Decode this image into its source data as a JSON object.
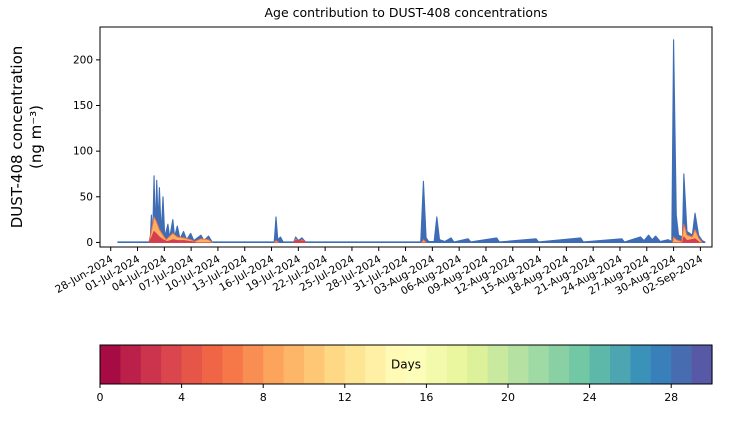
{
  "chart_data": {
    "type": "area",
    "title": "Age contribution to DUST-408 concentrations",
    "xlabel": "",
    "ylabel": "DUST-408 concentration (ng m⁻³)",
    "ylabel_lines": [
      "DUST-408 concentration",
      "(ng m⁻³)"
    ],
    "ylim": [
      -5,
      236
    ],
    "yticks": [
      0,
      50,
      100,
      150,
      200
    ],
    "xlim": [
      -1.2,
      67.3
    ],
    "x_unit": "days since 28-Jun-2024",
    "grid": false,
    "xtick_days": [
      0,
      3,
      6,
      9,
      12,
      15,
      18,
      21,
      24,
      27,
      30,
      33,
      36,
      39,
      42,
      45,
      48,
      51,
      54,
      57,
      60,
      63,
      66
    ],
    "xtick_labels": [
      "28-Jun-2024",
      "01-Jul-2024",
      "04-Jul-2024",
      "07-Jul-2024",
      "10-Jul-2024",
      "13-Jul-2024",
      "16-Jul-2024",
      "19-Jul-2024",
      "22-Jul-2024",
      "25-Jul-2024",
      "28-Jul-2024",
      "31-Jul-2024",
      "03-Aug-2024",
      "06-Aug-2024",
      "09-Aug-2024",
      "12-Aug-2024",
      "15-Aug-2024",
      "18-Aug-2024",
      "21-Aug-2024",
      "24-Aug-2024",
      "27-Aug-2024",
      "30-Aug-2024",
      "02-Sep-2024"
    ],
    "series": [
      {
        "name": "total-concentration-old-age",
        "color": "#3e6db5",
        "fill": "#3e6db5",
        "lw": 1.1,
        "segments": [
          [
            [
              0.8,
              0.5
            ],
            [
              4.3,
              0.5
            ],
            [
              4.45,
              8
            ],
            [
              4.55,
              30
            ],
            [
              4.7,
              8
            ],
            [
              4.85,
              73
            ],
            [
              5.0,
              14
            ],
            [
              5.15,
              68
            ],
            [
              5.3,
              22
            ],
            [
              5.45,
              60
            ],
            [
              5.65,
              10
            ],
            [
              5.85,
              50
            ],
            [
              6.05,
              6
            ],
            [
              6.4,
              20
            ],
            [
              6.6,
              5
            ],
            [
              6.95,
              25
            ],
            [
              7.15,
              6
            ],
            [
              7.45,
              18
            ],
            [
              7.75,
              4
            ],
            [
              8.15,
              12
            ],
            [
              8.5,
              3
            ],
            [
              8.95,
              10
            ],
            [
              9.3,
              2
            ],
            [
              10.1,
              8
            ],
            [
              10.45,
              2
            ],
            [
              10.95,
              7
            ],
            [
              11.35,
              0.5
            ],
            [
              12.0,
              0.5
            ],
            [
              18.3,
              0.5
            ],
            [
              18.5,
              28
            ],
            [
              18.7,
              3
            ],
            [
              19.0,
              6
            ],
            [
              19.3,
              0.5
            ],
            [
              20.5,
              0.5
            ],
            [
              20.7,
              6
            ],
            [
              21.0,
              2
            ],
            [
              21.4,
              5
            ],
            [
              21.8,
              0.5
            ],
            [
              34.7,
              0.5
            ],
            [
              35.0,
              67
            ],
            [
              35.3,
              5
            ],
            [
              35.6,
              1
            ],
            [
              36.2,
              1
            ],
            [
              36.5,
              28
            ],
            [
              36.8,
              3
            ],
            [
              37.4,
              1
            ],
            [
              38.1,
              5
            ],
            [
              38.4,
              0.5
            ],
            [
              40.0,
              4
            ],
            [
              40.3,
              0.5
            ],
            [
              43.2,
              5
            ],
            [
              43.5,
              0.5
            ],
            [
              47.6,
              4
            ],
            [
              47.9,
              0.5
            ],
            [
              52.6,
              5
            ],
            [
              52.9,
              0.5
            ],
            [
              57.2,
              4
            ],
            [
              57.5,
              0.5
            ],
            [
              59.3,
              6
            ],
            [
              59.7,
              2
            ],
            [
              60.2,
              8
            ],
            [
              60.6,
              3
            ],
            [
              61.0,
              7
            ],
            [
              61.5,
              1
            ],
            [
              62.4,
              3
            ],
            [
              62.8,
              1
            ],
            [
              63.0,
              222
            ],
            [
              63.3,
              30
            ],
            [
              63.55,
              8
            ],
            [
              64.0,
              6
            ],
            [
              64.15,
              75
            ],
            [
              64.5,
              12
            ],
            [
              65.1,
              8
            ],
            [
              65.4,
              32
            ],
            [
              65.8,
              8
            ],
            [
              66.2,
              2
            ],
            [
              66.5,
              0.5
            ]
          ]
        ]
      },
      {
        "name": "young-age-contribution",
        "color": "#f46d43",
        "fill": "#fdae61",
        "lw": 0.9,
        "segments": [
          [
            [
              4.3,
              0
            ],
            [
              4.6,
              15
            ],
            [
              4.85,
              28
            ],
            [
              5.15,
              22
            ],
            [
              5.45,
              14
            ],
            [
              5.85,
              8
            ],
            [
              6.2,
              3
            ],
            [
              6.95,
              10
            ],
            [
              7.45,
              6
            ],
            [
              8.15,
              5
            ],
            [
              8.95,
              3
            ],
            [
              9.4,
              1
            ],
            [
              10.1,
              4
            ],
            [
              10.95,
              3
            ],
            [
              11.4,
              0
            ]
          ],
          [
            [
              18.3,
              0
            ],
            [
              18.5,
              2
            ],
            [
              18.8,
              0
            ]
          ],
          [
            [
              20.5,
              0
            ],
            [
              20.7,
              4
            ],
            [
              21.0,
              1
            ],
            [
              21.4,
              3
            ],
            [
              21.8,
              0
            ]
          ],
          [
            [
              34.8,
              0
            ],
            [
              35.0,
              3
            ],
            [
              35.3,
              0
            ]
          ],
          [
            [
              62.9,
              0
            ],
            [
              63.0,
              6
            ],
            [
              63.3,
              3
            ],
            [
              63.9,
              1
            ],
            [
              64.15,
              20
            ],
            [
              64.5,
              8
            ],
            [
              65.1,
              6
            ],
            [
              65.4,
              14
            ],
            [
              65.8,
              5
            ],
            [
              66.2,
              0
            ]
          ]
        ]
      },
      {
        "name": "freshest-age-contribution",
        "color": "#d53e4f",
        "fill": "#d53e4f",
        "lw": 0.9,
        "segments": [
          [
            [
              4.3,
              0
            ],
            [
              4.6,
              6
            ],
            [
              4.85,
              12
            ],
            [
              5.15,
              9
            ],
            [
              5.45,
              6
            ],
            [
              5.85,
              3
            ],
            [
              6.3,
              1
            ],
            [
              7.0,
              3
            ],
            [
              7.5,
              2
            ],
            [
              8.2,
              2
            ],
            [
              9.0,
              1
            ],
            [
              9.5,
              0
            ]
          ],
          [
            [
              20.5,
              0
            ],
            [
              20.7,
              2
            ],
            [
              21.4,
              1.5
            ],
            [
              21.9,
              0
            ]
          ],
          [
            [
              64.0,
              0
            ],
            [
              64.15,
              6
            ],
            [
              64.5,
              2
            ],
            [
              65.4,
              4
            ],
            [
              65.9,
              0
            ]
          ]
        ]
      }
    ],
    "colorbar": {
      "label": "Days",
      "vmin": 0,
      "vmax": 30,
      "n_bands": 30,
      "ticks": [
        0,
        4,
        8,
        12,
        16,
        20,
        24,
        28
      ],
      "cmap_name": "Spectral",
      "cmap_anchors": [
        "#9e0142",
        "#d53e4f",
        "#f46d43",
        "#fdae61",
        "#fee08b",
        "#ffffbf",
        "#e6f598",
        "#abdda4",
        "#66c2a5",
        "#3288bd",
        "#5e4fa2"
      ]
    }
  }
}
